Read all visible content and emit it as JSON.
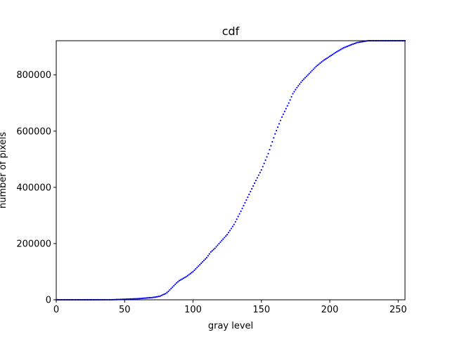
{
  "chart_data": {
    "type": "scatter",
    "title": "cdf",
    "xlabel": "gray level",
    "ylabel": "number of pixels",
    "xlim": [
      0,
      255
    ],
    "ylim": [
      0,
      921600
    ],
    "xticks": [
      0,
      50,
      100,
      150,
      200,
      250
    ],
    "yticks": [
      0,
      200000,
      400000,
      600000,
      800000
    ],
    "xtick_labels": [
      "0",
      "50",
      "100",
      "150",
      "200",
      "250"
    ],
    "ytick_labels": [
      "0",
      "200000",
      "400000",
      "600000",
      "800000"
    ],
    "grid": false,
    "legend": "none",
    "marker_color": "#0000ff",
    "series": [
      {
        "x": [
          0,
          20,
          40,
          45,
          50,
          55,
          60,
          65,
          70,
          73,
          76,
          78,
          80,
          82,
          84,
          86,
          88,
          90,
          95,
          100,
          105,
          110,
          113,
          116,
          120,
          125,
          130,
          135,
          140,
          145,
          150,
          155,
          160,
          165,
          170,
          173,
          176,
          180,
          185,
          190,
          195,
          200,
          205,
          210,
          215,
          220,
          225,
          228,
          235,
          255
        ],
        "y": [
          0,
          0,
          200,
          1000,
          2000,
          3000,
          4000,
          6000,
          8000,
          10000,
          13000,
          18000,
          22000,
          30000,
          40000,
          50000,
          60000,
          68000,
          82000,
          100000,
          125000,
          150000,
          170000,
          183000,
          205000,
          232000,
          268000,
          315000,
          365000,
          415000,
          462000,
          520000,
          590000,
          650000,
          700000,
          733000,
          755000,
          780000,
          805000,
          830000,
          850000,
          866000,
          882000,
          896000,
          906000,
          915000,
          919000,
          921600,
          921600,
          921600
        ]
      }
    ]
  }
}
